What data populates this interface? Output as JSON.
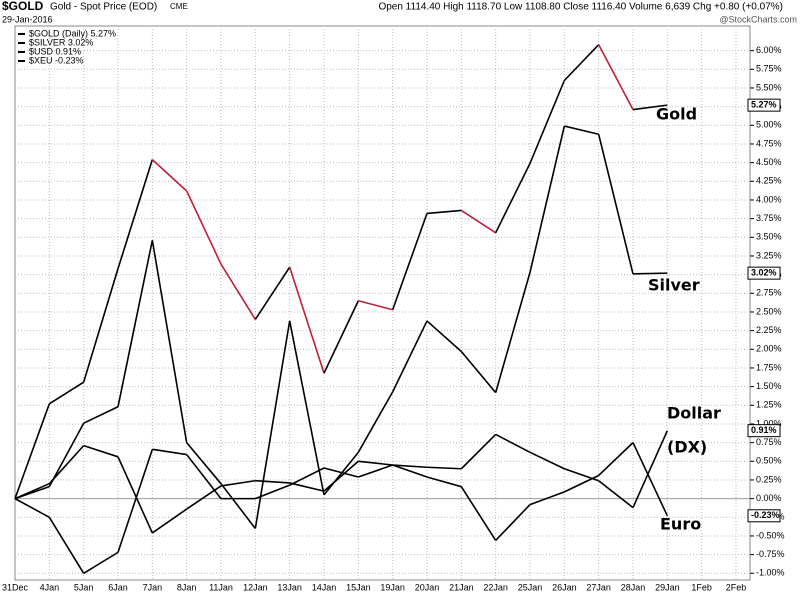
{
  "chart_data": {
    "type": "line",
    "title": "$GOLD",
    "subtitle": "Gold - Spot Price (EOD)",
    "exchange": "CME",
    "date": "29-Jan-2016",
    "quote": "Open 1114.40 High 1118.70 Low 1108.80 Close 1116.40 Volume 6,639 Chg +0.80 (+0.07%)",
    "watermark": "@StockCharts.com",
    "categories": [
      "31Dec",
      "4Jan",
      "5Jan",
      "6Jan",
      "7Jan",
      "8Jan",
      "11Jan",
      "12Jan",
      "13Jan",
      "14Jan",
      "15Jan",
      "19Jan",
      "20Jan",
      "21Jan",
      "22Jan",
      "25Jan",
      "26Jan",
      "27Jan",
      "28Jan",
      "29Jan",
      "1Feb",
      "2Feb"
    ],
    "series": [
      {
        "name": "$GOLD (Daily) 5.27%",
        "color": "#000000",
        "down_color": "#c0203a",
        "end_label": "5.27%",
        "values": [
          0,
          1.27,
          1.56,
          3.08,
          4.54,
          4.12,
          3.14,
          2.4,
          3.1,
          1.68,
          2.65,
          2.53,
          3.82,
          3.86,
          3.56,
          4.49,
          5.6,
          6.08,
          5.21,
          5.27,
          null,
          null
        ]
      },
      {
        "name": "$SILVER 3.02%",
        "color": "#000000",
        "end_label": "3.02%",
        "values": [
          0,
          0.16,
          1.01,
          1.23,
          3.46,
          0.75,
          0.2,
          -0.4,
          2.38,
          0.05,
          0.62,
          1.43,
          2.38,
          1.97,
          1.42,
          3.03,
          4.99,
          4.88,
          3.01,
          3.02,
          null,
          null
        ]
      },
      {
        "name": "$USD 0.91%",
        "color": "#000000",
        "end_label": "0.91%",
        "values": [
          0,
          0.2,
          0.71,
          0.56,
          -0.46,
          -0.14,
          0.17,
          0.24,
          0.21,
          0.1,
          0.5,
          0.45,
          0.42,
          0.4,
          0.86,
          0.62,
          0.4,
          0.24,
          -0.12,
          0.91,
          null,
          null
        ]
      },
      {
        "name": "$XEU -0.23%",
        "color": "#000000",
        "end_label": "-0.23%",
        "values": [
          0,
          -0.25,
          -1.0,
          -0.72,
          0.66,
          0.59,
          0.0,
          0.0,
          0.18,
          0.41,
          0.29,
          0.45,
          0.29,
          0.16,
          -0.56,
          -0.08,
          0.09,
          0.31,
          0.75,
          -0.23,
          null,
          null
        ]
      }
    ],
    "annotations": [
      {
        "text": "Gold"
      },
      {
        "text": "Silver"
      },
      {
        "text": "Dollar"
      },
      {
        "text": "(DX)"
      },
      {
        "text": "Euro"
      }
    ],
    "ylim": [
      -1.09,
      6.33
    ],
    "yticks": [
      {
        "value": -1.0,
        "label": "-1.00%"
      },
      {
        "value": -0.75,
        "label": "-0.75%"
      },
      {
        "value": -0.5,
        "label": "-0.50%"
      },
      {
        "value": -0.25,
        "label": "-0.25%"
      },
      {
        "value": 0.0,
        "label": "0.00%"
      },
      {
        "value": 0.25,
        "label": "0.25%"
      },
      {
        "value": 0.5,
        "label": "0.50%"
      },
      {
        "value": 0.75,
        "label": "0.75%"
      },
      {
        "value": 1.0,
        "label": "1.00%"
      },
      {
        "value": 1.25,
        "label": "1.25%"
      },
      {
        "value": 1.5,
        "label": "1.50%"
      },
      {
        "value": 1.75,
        "label": "1.75%"
      },
      {
        "value": 2.0,
        "label": "2.00%"
      },
      {
        "value": 2.25,
        "label": "2.25%"
      },
      {
        "value": 2.5,
        "label": "2.50%"
      },
      {
        "value": 2.75,
        "label": "2.75%"
      },
      {
        "value": 3.0,
        "label": "3.00%"
      },
      {
        "value": 3.25,
        "label": "3.25%"
      },
      {
        "value": 3.5,
        "label": "3.50%"
      },
      {
        "value": 3.75,
        "label": "3.75%"
      },
      {
        "value": 4.0,
        "label": "4.00%"
      },
      {
        "value": 4.25,
        "label": "4.25%"
      },
      {
        "value": 4.5,
        "label": "4.50%"
      },
      {
        "value": 4.75,
        "label": "4.75%"
      },
      {
        "value": 5.0,
        "label": "5.00%"
      },
      {
        "value": 5.25,
        "label": "5.25%"
      },
      {
        "value": 5.5,
        "label": "5.50%"
      },
      {
        "value": 5.75,
        "label": "5.75%"
      },
      {
        "value": 6.0,
        "label": "6.00%"
      }
    ],
    "grid": true
  }
}
